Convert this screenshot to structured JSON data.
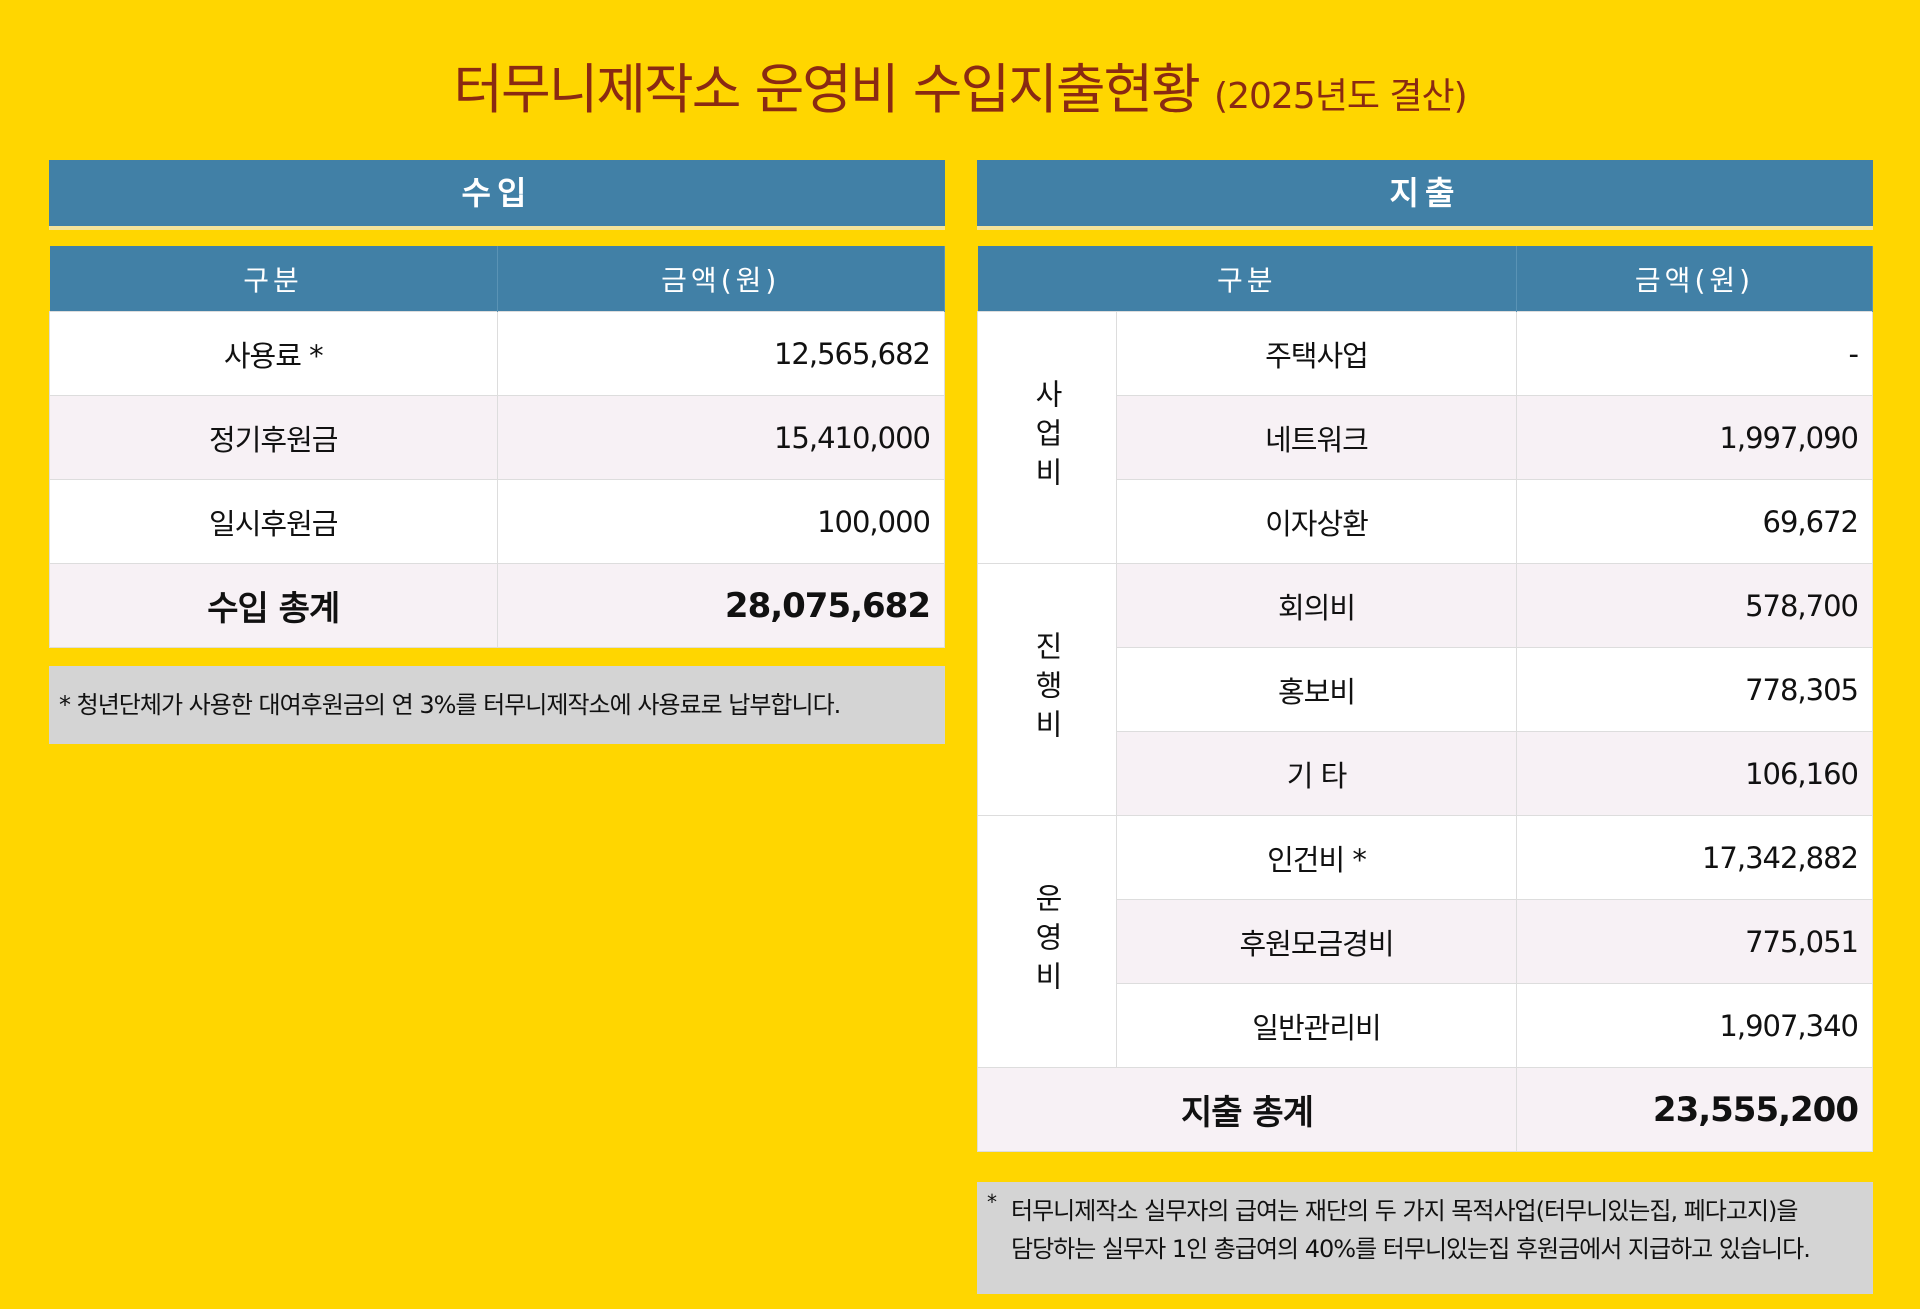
{
  "title": "터무니제작소 운영비 수입지출현황",
  "subtitle": "(2025년도 결산)",
  "income": {
    "header": "수입",
    "columns": [
      "구분",
      "금액(원)"
    ],
    "rows": [
      [
        "사용료 *",
        "12,565,682"
      ],
      [
        "정기후원금",
        "15,410,000"
      ],
      [
        "일시후원금",
        "100,000"
      ]
    ],
    "total": [
      "수입 총계",
      "28,075,682"
    ],
    "note": "* 청년단체가 사용한 대여후원금의 연 3%를 터무니제작소에 사용료로 납부합니다."
  },
  "expense": {
    "header": "지출",
    "columns": [
      "구분",
      "금액(원)"
    ],
    "groups": [
      {
        "label": "사업비",
        "items": [
          [
            "주택사업",
            "-"
          ],
          [
            "네트워크",
            "1,997,090"
          ],
          [
            "이자상환",
            "69,672"
          ]
        ]
      },
      {
        "label": "진행비",
        "items": [
          [
            "회의비",
            "578,700"
          ],
          [
            "홍보비",
            "778,305"
          ],
          [
            "기 타",
            "106,160"
          ]
        ]
      },
      {
        "label": "운영비",
        "items": [
          [
            "인건비 *",
            "17,342,882"
          ],
          [
            "후원모금경비",
            "775,051"
          ],
          [
            "일반관리비",
            "1,907,340"
          ]
        ]
      }
    ],
    "total": [
      "지출 총계",
      "23,555,200"
    ],
    "note_mark": "*",
    "note_lines": [
      "터무니제작소 실무자의 급여는 재단의 두 가지 목적사업(터무니있는집, 페다고지)을",
      "담당하는 실무자 1인 총급여의 40%를 터무니있는집 후원금에서 지급하고 있습니다."
    ]
  }
}
